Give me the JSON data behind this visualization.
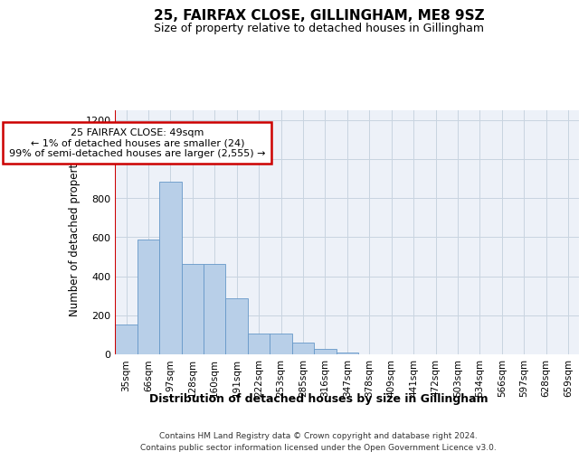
{
  "title": "25, FAIRFAX CLOSE, GILLINGHAM, ME8 9SZ",
  "subtitle": "Size of property relative to detached houses in Gillingham",
  "xlabel": "Distribution of detached houses by size in Gillingham",
  "ylabel": "Number of detached properties",
  "bar_labels": [
    "35sqm",
    "66sqm",
    "97sqm",
    "128sqm",
    "160sqm",
    "191sqm",
    "222sqm",
    "253sqm",
    "285sqm",
    "316sqm",
    "347sqm",
    "378sqm",
    "409sqm",
    "441sqm",
    "472sqm",
    "503sqm",
    "534sqm",
    "566sqm",
    "597sqm",
    "628sqm",
    "659sqm"
  ],
  "bar_values": [
    155,
    590,
    885,
    465,
    465,
    285,
    105,
    105,
    60,
    30,
    10,
    0,
    0,
    0,
    0,
    0,
    0,
    0,
    0,
    0,
    0
  ],
  "bar_color": "#b8cfe8",
  "bar_edge_color": "#6698c8",
  "grid_color": "#c8d4e0",
  "bg_color": "#edf1f8",
  "annotation_line1": "25 FAIRFAX CLOSE: 49sqm",
  "annotation_line2": "← 1% of detached houses are smaller (24)",
  "annotation_line3": "99% of semi-detached houses are larger (2,555) →",
  "annotation_box_color": "#ffffff",
  "annotation_box_edge": "#cc0000",
  "red_line_color": "#cc0000",
  "ylim": [
    0,
    1250
  ],
  "yticks": [
    0,
    200,
    400,
    600,
    800,
    1000,
    1200
  ],
  "footer_line1": "Contains HM Land Registry data © Crown copyright and database right 2024.",
  "footer_line2": "Contains public sector information licensed under the Open Government Licence v3.0."
}
